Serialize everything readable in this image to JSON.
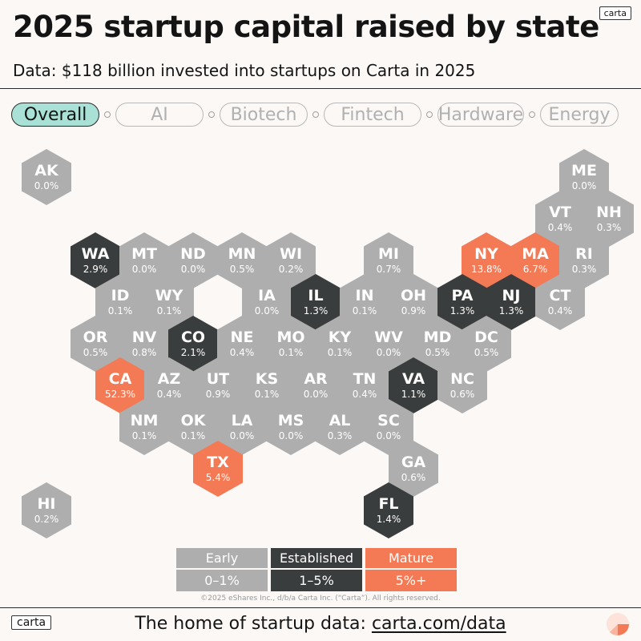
{
  "header": {
    "title": "2025 startup capital raised by state",
    "subtitle": "Data: $118 billion invested into startups on Carta in 2025",
    "brand": "carta"
  },
  "tabs": [
    {
      "label": "Overall",
      "active": true
    },
    {
      "label": "AI",
      "active": false
    },
    {
      "label": "Biotech",
      "active": false
    },
    {
      "label": "Fintech",
      "active": false
    },
    {
      "label": "Hardware",
      "active": false
    },
    {
      "label": "Energy",
      "active": false
    }
  ],
  "colors": {
    "early": "#aeaeae",
    "established": "#3a3d3d",
    "mature": "#f37a55",
    "active_tab": "#a9e1d6"
  },
  "map": {
    "states": [
      {
        "abbr": "AK",
        "value": "0.0%",
        "tier": "early",
        "row": 0,
        "col": 0
      },
      {
        "abbr": "ME",
        "value": "0.0%",
        "tier": "early",
        "row": 0,
        "col": 11
      },
      {
        "abbr": "VT",
        "value": "0.4%",
        "tier": "early",
        "row": 1,
        "col": 10
      },
      {
        "abbr": "NH",
        "value": "0.3%",
        "tier": "early",
        "row": 1,
        "col": 11
      },
      {
        "abbr": "WA",
        "value": "2.9%",
        "tier": "established",
        "row": 2,
        "col": 1
      },
      {
        "abbr": "MT",
        "value": "0.0%",
        "tier": "early",
        "row": 2,
        "col": 2
      },
      {
        "abbr": "ND",
        "value": "0.0%",
        "tier": "early",
        "row": 2,
        "col": 3
      },
      {
        "abbr": "MN",
        "value": "0.5%",
        "tier": "early",
        "row": 2,
        "col": 4
      },
      {
        "abbr": "WI",
        "value": "0.2%",
        "tier": "early",
        "row": 2,
        "col": 5
      },
      {
        "abbr": "MI",
        "value": "0.7%",
        "tier": "early",
        "row": 2,
        "col": 7
      },
      {
        "abbr": "NY",
        "value": "13.8%",
        "tier": "mature",
        "row": 2,
        "col": 9
      },
      {
        "abbr": "MA",
        "value": "6.7%",
        "tier": "mature",
        "row": 2,
        "col": 10
      },
      {
        "abbr": "RI",
        "value": "0.3%",
        "tier": "early",
        "row": 2,
        "col": 11
      },
      {
        "abbr": "ID",
        "value": "0.1%",
        "tier": "early",
        "row": 3,
        "col": 1
      },
      {
        "abbr": "WY",
        "value": "0.1%",
        "tier": "early",
        "row": 3,
        "col": 2
      },
      {
        "abbr": "IA",
        "value": "0.0%",
        "tier": "early",
        "row": 3,
        "col": 4
      },
      {
        "abbr": "IL",
        "value": "1.3%",
        "tier": "established",
        "row": 3,
        "col": 5
      },
      {
        "abbr": "IN",
        "value": "0.1%",
        "tier": "early",
        "row": 3,
        "col": 6
      },
      {
        "abbr": "OH",
        "value": "0.9%",
        "tier": "early",
        "row": 3,
        "col": 7
      },
      {
        "abbr": "PA",
        "value": "1.3%",
        "tier": "established",
        "row": 3,
        "col": 8
      },
      {
        "abbr": "NJ",
        "value": "1.3%",
        "tier": "established",
        "row": 3,
        "col": 9
      },
      {
        "abbr": "CT",
        "value": "0.4%",
        "tier": "early",
        "row": 3,
        "col": 10
      },
      {
        "abbr": "OR",
        "value": "0.5%",
        "tier": "early",
        "row": 4,
        "col": 1
      },
      {
        "abbr": "NV",
        "value": "0.8%",
        "tier": "early",
        "row": 4,
        "col": 2
      },
      {
        "abbr": "CO",
        "value": "2.1%",
        "tier": "established",
        "row": 4,
        "col": 3
      },
      {
        "abbr": "NE",
        "value": "0.4%",
        "tier": "early",
        "row": 4,
        "col": 4
      },
      {
        "abbr": "MO",
        "value": "0.1%",
        "tier": "early",
        "row": 4,
        "col": 5
      },
      {
        "abbr": "KY",
        "value": "0.1%",
        "tier": "early",
        "row": 4,
        "col": 6
      },
      {
        "abbr": "WV",
        "value": "0.0%",
        "tier": "early",
        "row": 4,
        "col": 7
      },
      {
        "abbr": "MD",
        "value": "0.5%",
        "tier": "early",
        "row": 4,
        "col": 8
      },
      {
        "abbr": "DC",
        "value": "0.5%",
        "tier": "early",
        "row": 4,
        "col": 9
      },
      {
        "abbr": "CA",
        "value": "52.3%",
        "tier": "mature",
        "row": 5,
        "col": 1
      },
      {
        "abbr": "AZ",
        "value": "0.4%",
        "tier": "early",
        "row": 5,
        "col": 2
      },
      {
        "abbr": "UT",
        "value": "0.9%",
        "tier": "early",
        "row": 5,
        "col": 3
      },
      {
        "abbr": "KS",
        "value": "0.1%",
        "tier": "early",
        "row": 5,
        "col": 4
      },
      {
        "abbr": "AR",
        "value": "0.0%",
        "tier": "early",
        "row": 5,
        "col": 5
      },
      {
        "abbr": "TN",
        "value": "0.4%",
        "tier": "early",
        "row": 5,
        "col": 6
      },
      {
        "abbr": "VA",
        "value": "1.1%",
        "tier": "established",
        "row": 5,
        "col": 7
      },
      {
        "abbr": "NC",
        "value": "0.6%",
        "tier": "early",
        "row": 5,
        "col": 8
      },
      {
        "abbr": "NM",
        "value": "0.1%",
        "tier": "early",
        "row": 6,
        "col": 2
      },
      {
        "abbr": "OK",
        "value": "0.1%",
        "tier": "early",
        "row": 6,
        "col": 3
      },
      {
        "abbr": "LA",
        "value": "0.0%",
        "tier": "early",
        "row": 6,
        "col": 4
      },
      {
        "abbr": "MS",
        "value": "0.0%",
        "tier": "early",
        "row": 6,
        "col": 5
      },
      {
        "abbr": "AL",
        "value": "0.3%",
        "tier": "early",
        "row": 6,
        "col": 6
      },
      {
        "abbr": "SC",
        "value": "0.0%",
        "tier": "early",
        "row": 6,
        "col": 7
      },
      {
        "abbr": "TX",
        "value": "5.4%",
        "tier": "mature",
        "row": 7,
        "col": 3
      },
      {
        "abbr": "GA",
        "value": "0.6%",
        "tier": "early",
        "row": 7,
        "col": 7
      },
      {
        "abbr": "HI",
        "value": "0.2%",
        "tier": "early",
        "row": 8,
        "col": 0
      },
      {
        "abbr": "FL",
        "value": "1.4%",
        "tier": "established",
        "row": 8,
        "col": 7
      }
    ]
  },
  "legend": [
    {
      "label": "Early",
      "range": "0–1%",
      "tier": "early"
    },
    {
      "label": "Established",
      "range": "1–5%",
      "tier": "established"
    },
    {
      "label": "Mature",
      "range": "5%+",
      "tier": "mature"
    }
  ],
  "copyright": "©2025 eShares Inc., d/b/a Carta Inc. (“Carta”). All rights reserved.",
  "footer": {
    "brand": "carta",
    "text": "The home of startup data: ",
    "link": "carta.com/data"
  }
}
